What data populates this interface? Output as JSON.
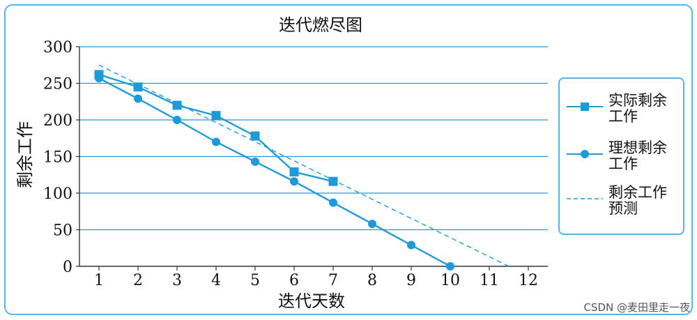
{
  "chart_data": {
    "type": "line",
    "title": "迭代燃尽图",
    "xlabel": "迭代天数",
    "ylabel": "剩余工作",
    "x": [
      1,
      2,
      3,
      4,
      5,
      6,
      7,
      8,
      9,
      10,
      11,
      12
    ],
    "xlim": [
      0.5,
      12.5
    ],
    "ylim": [
      0,
      300
    ],
    "yticks": [
      0,
      50,
      100,
      150,
      200,
      250,
      300
    ],
    "grid": true,
    "legend_position": "right",
    "series": [
      {
        "name": "实际剩余工作",
        "marker": "square",
        "style": "solid",
        "x": [
          1,
          2,
          3,
          4,
          5,
          6,
          7
        ],
        "values": [
          262,
          245,
          220,
          206,
          178,
          129,
          116
        ]
      },
      {
        "name": "理想剩余工作",
        "marker": "circle",
        "style": "solid",
        "x": [
          1,
          2,
          3,
          4,
          5,
          6,
          7,
          8,
          9,
          10
        ],
        "values": [
          257,
          229,
          200,
          170,
          143,
          116,
          87,
          58,
          29,
          0
        ]
      },
      {
        "name": "剩余工作预测",
        "marker": "none",
        "style": "dashed",
        "x": [
          1,
          11.5
        ],
        "values": [
          275,
          0
        ]
      }
    ],
    "colors": {
      "line": "#1e9ad8",
      "grid": "#1e9ad8",
      "border": "#55b6e6"
    }
  },
  "legend": {
    "items": [
      {
        "line1": "实际剩余",
        "line2": "工作"
      },
      {
        "line1": "理想剩余",
        "line2": "工作"
      },
      {
        "line1": "剩余工作",
        "line2": "预测"
      }
    ]
  },
  "watermark": "CSDN @麦田里走一夜"
}
